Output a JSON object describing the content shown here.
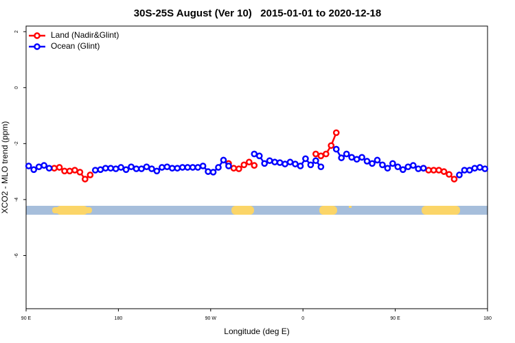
{
  "chart_data": {
    "type": "line",
    "title": "30S-25S August (Ver 10)   2015-01-01 to 2020-12-18",
    "xlabel": "Longitude (deg E)",
    "ylabel": "XCO2 - MLO trend (ppm)",
    "xlim": [
      -270,
      180
    ],
    "xticks": [
      {
        "value": -270,
        "label": "90 E"
      },
      {
        "value": -180,
        "label": "180"
      },
      {
        "value": -90,
        "label": "90 W"
      },
      0,
      {
        "value": 90,
        "label": "90 E"
      },
      180
    ],
    "ylim": [
      -7.9,
      2.2
    ],
    "yticks": [
      -6,
      -4,
      -2,
      0,
      2
    ],
    "legend": "top-left",
    "x": [
      -267.5,
      -262.5,
      -257.5,
      -252.5,
      -247.5,
      -242.5,
      -237.5,
      -232.5,
      -227.5,
      -222.5,
      -217.5,
      -212.5,
      -207.5,
      -202.5,
      -197.5,
      -192.5,
      -187.5,
      -182.5,
      -177.5,
      -172.5,
      -167.5,
      -162.5,
      -157.5,
      -152.5,
      -147.5,
      -142.5,
      -137.5,
      -132.5,
      -127.5,
      -122.5,
      -117.5,
      -112.5,
      -107.5,
      -102.5,
      -97.5,
      -92.5,
      -87.5,
      -82.5,
      -77.5,
      -72.5,
      -67.5,
      -62.5,
      -57.5,
      -52.5,
      -47.5,
      -42.5,
      -37.5,
      -32.5,
      -27.5,
      -22.5,
      -17.5,
      -12.5,
      -7.5,
      -2.5,
      2.5,
      7.5,
      12.5,
      17.5,
      22.5,
      27.5,
      32.5,
      37.5,
      42.5,
      47.5,
      52.5,
      57.5,
      62.5,
      67.5,
      72.5,
      77.5,
      82.5,
      87.5,
      92.5,
      97.5,
      102.5,
      107.5,
      112.5,
      117.5,
      122.5,
      127.5,
      132.5,
      137.5,
      142.5,
      147.5,
      152.5,
      157.5,
      162.5,
      167.5,
      172.5,
      177.5
    ],
    "series": [
      {
        "name": "Land (Nadir&Glint)",
        "color": "#ff0000",
        "values": [
          null,
          null,
          null,
          null,
          null,
          -2.88,
          -2.85,
          -2.98,
          -2.98,
          -2.95,
          -3.02,
          -3.27,
          -3.12,
          null,
          null,
          null,
          null,
          null,
          null,
          null,
          null,
          null,
          null,
          null,
          null,
          null,
          null,
          null,
          null,
          null,
          null,
          null,
          null,
          null,
          null,
          null,
          null,
          null,
          null,
          -2.71,
          -2.88,
          -2.9,
          -2.76,
          -2.66,
          -2.78,
          null,
          null,
          null,
          null,
          null,
          null,
          null,
          null,
          null,
          null,
          null,
          -2.37,
          -2.44,
          -2.37,
          -2.07,
          -1.61,
          null,
          null,
          null,
          null,
          null,
          null,
          null,
          null,
          null,
          null,
          null,
          null,
          null,
          null,
          null,
          null,
          -2.88,
          -2.95,
          -2.95,
          -2.95,
          -3.0,
          -3.1,
          -3.27,
          null,
          null,
          null,
          null,
          null,
          null
        ]
      },
      {
        "name": "Ocean (Glint)",
        "color": "#0000ff",
        "values": [
          -2.8,
          -2.93,
          -2.83,
          -2.78,
          -2.88,
          null,
          null,
          null,
          null,
          null,
          null,
          null,
          null,
          -2.95,
          -2.93,
          -2.88,
          -2.88,
          -2.9,
          -2.85,
          -2.93,
          -2.83,
          -2.9,
          -2.9,
          -2.83,
          -2.9,
          -2.98,
          -2.85,
          -2.83,
          -2.88,
          -2.88,
          -2.85,
          -2.85,
          -2.85,
          -2.85,
          -2.8,
          -3.0,
          -3.02,
          -2.85,
          -2.59,
          -2.8,
          null,
          null,
          null,
          null,
          -2.37,
          -2.44,
          -2.71,
          -2.61,
          -2.66,
          -2.68,
          -2.73,
          -2.66,
          -2.73,
          -2.8,
          -2.54,
          -2.76,
          -2.61,
          -2.83,
          null,
          null,
          -2.2,
          -2.51,
          -2.37,
          -2.49,
          -2.56,
          -2.49,
          -2.63,
          -2.71,
          -2.59,
          -2.76,
          -2.88,
          -2.71,
          -2.83,
          -2.93,
          -2.83,
          -2.78,
          -2.9,
          -2.88,
          null,
          null,
          null,
          null,
          null,
          null,
          -3.12,
          -2.95,
          -2.95,
          -2.88,
          -2.85,
          -2.9
        ]
      }
    ]
  }
}
